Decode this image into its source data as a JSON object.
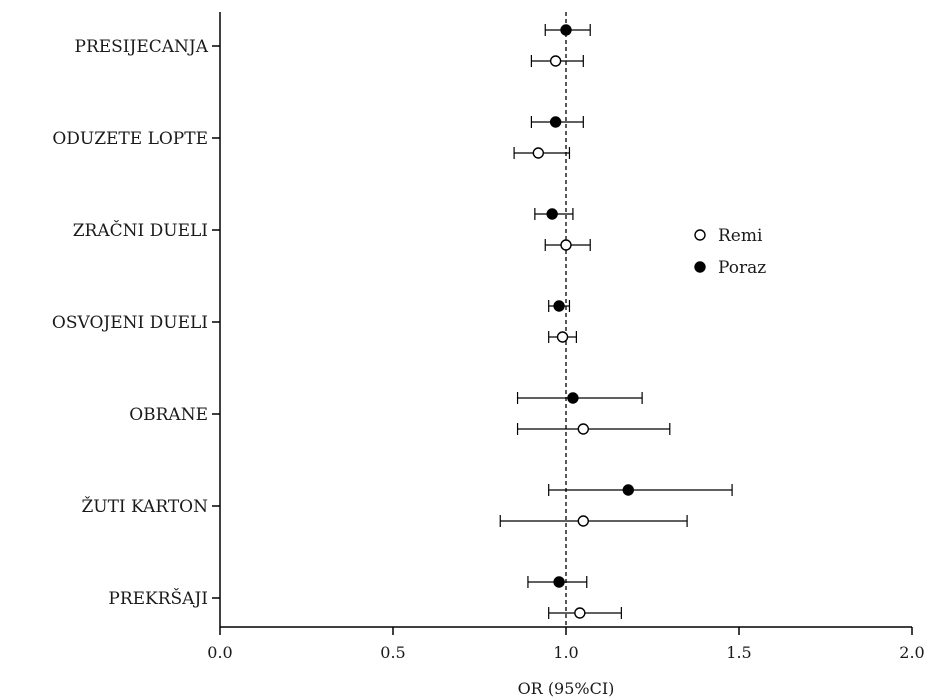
{
  "chart_data": {
    "type": "scatter",
    "subtype": "forest-plot",
    "title": "",
    "xlabel": "OR (95%CI)",
    "ylabel": "",
    "xlim": [
      0.0,
      2.0
    ],
    "xticks": [
      "0.0",
      "0.5",
      "1.0",
      "1.5",
      "2.0"
    ],
    "xtick_values": [
      0.0,
      0.5,
      1.0,
      1.5,
      2.0
    ],
    "reference_line": 1.0,
    "grid": false,
    "legend_position": "right",
    "categories": [
      "PRESIJECANJA",
      "ODUZETE LOPTE",
      "ZRAČNI DUELI",
      "OSVOJENI DUELI",
      "OBRANE",
      "ŽUTI KARTON",
      "PREKRŠAJI"
    ],
    "series": [
      {
        "name": "Poraz",
        "marker": "filled-circle",
        "color": "#000000",
        "points": [
          {
            "or": 1.0,
            "low": 0.94,
            "high": 1.07
          },
          {
            "or": 0.97,
            "low": 0.9,
            "high": 1.05
          },
          {
            "or": 0.96,
            "low": 0.91,
            "high": 1.02
          },
          {
            "or": 0.98,
            "low": 0.95,
            "high": 1.01
          },
          {
            "or": 1.02,
            "low": 0.86,
            "high": 1.22
          },
          {
            "or": 1.18,
            "low": 0.95,
            "high": 1.48
          },
          {
            "or": 0.98,
            "low": 0.89,
            "high": 1.06
          }
        ]
      },
      {
        "name": "Remi",
        "marker": "open-circle",
        "color": "#000000",
        "points": [
          {
            "or": 0.97,
            "low": 0.9,
            "high": 1.05
          },
          {
            "or": 0.92,
            "low": 0.85,
            "high": 1.01
          },
          {
            "or": 1.0,
            "low": 0.94,
            "high": 1.07
          },
          {
            "or": 0.99,
            "low": 0.95,
            "high": 1.03
          },
          {
            "or": 1.05,
            "low": 0.86,
            "high": 1.3
          },
          {
            "or": 1.05,
            "low": 0.81,
            "high": 1.35
          },
          {
            "or": 1.04,
            "low": 0.95,
            "high": 1.16
          }
        ]
      }
    ],
    "legend": [
      {
        "name": "Remi",
        "marker": "open-circle"
      },
      {
        "name": "Poraz",
        "marker": "filled-circle"
      }
    ]
  }
}
